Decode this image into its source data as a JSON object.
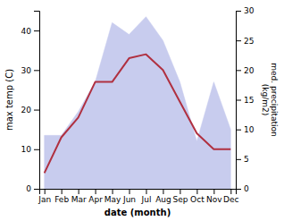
{
  "chart_data": {
    "type": "line",
    "categories": [
      "Jan",
      "Feb",
      "Mar",
      "Apr",
      "May",
      "Jun",
      "Jul",
      "Aug",
      "Sep",
      "Oct",
      "Nov",
      "Dec"
    ],
    "series": [
      {
        "type": "area",
        "axis": "y2",
        "color": "#c8ccee",
        "values": [
          9,
          9,
          13,
          18,
          28,
          26,
          29,
          25,
          18,
          8,
          18,
          10
        ]
      },
      {
        "type": "line",
        "color": "#b03040",
        "values": [
          4,
          13,
          18,
          27,
          27,
          33,
          34,
          30,
          22,
          14,
          10,
          10
        ]
      }
    ],
    "xlabel": "date (month)",
    "ylabel": "max temp (C)",
    "y2label": "med. precipitation\n(kg/m2)",
    "ylim": [
      0,
      45
    ],
    "yticks": [
      0,
      10,
      20,
      30,
      40
    ],
    "y2lim": [
      0,
      30
    ],
    "y2ticks": [
      0,
      5,
      10,
      15,
      20,
      25,
      30
    ],
    "grid": false
  }
}
